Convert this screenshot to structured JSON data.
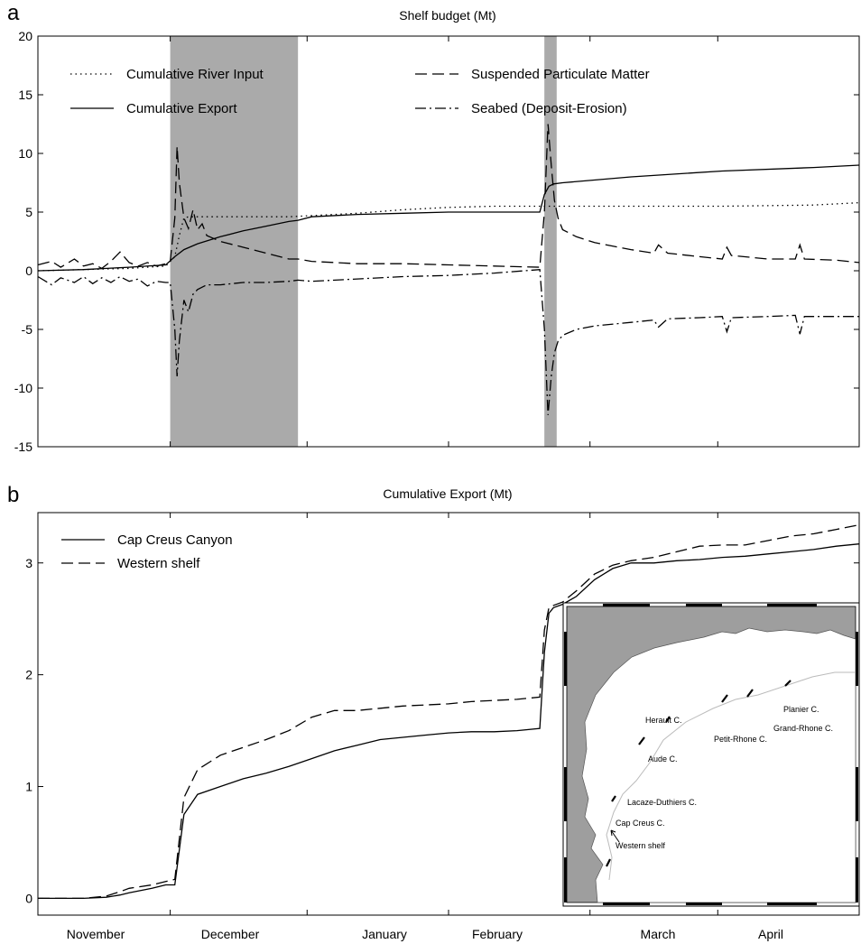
{
  "months": [
    "November",
    "December",
    "January",
    "February",
    "March",
    "April"
  ],
  "chart_data": [
    {
      "type": "line",
      "panel": "a",
      "title": "Shelf budget (Mt)",
      "xlim": [
        0,
        180
      ],
      "ylim": [
        -15,
        20
      ],
      "yticks": [
        20,
        15,
        10,
        5,
        0,
        -5,
        -10,
        -15
      ],
      "shaded_periods": [
        [
          29,
          57
        ],
        [
          111,
          113.7
        ]
      ],
      "legend": {
        "placement": "top",
        "columns": 2
      },
      "series": [
        {
          "name": "Cumulative River Input",
          "style": "dotted",
          "x": [
            0,
            10,
            20,
            28,
            30,
            31,
            32,
            33,
            37,
            45,
            55,
            60,
            70,
            80,
            90,
            100,
            110,
            111,
            112,
            113,
            115,
            130,
            150,
            170,
            180
          ],
          "y": [
            0,
            0.1,
            0.2,
            0.4,
            1.2,
            3.0,
            4.5,
            4.6,
            4.6,
            4.6,
            4.6,
            4.7,
            4.9,
            5.2,
            5.4,
            5.5,
            5.5,
            5.5,
            5.5,
            5.5,
            5.5,
            5.5,
            5.5,
            5.6,
            5.8
          ]
        },
        {
          "name": "Cumulative Export",
          "style": "solid",
          "x": [
            0,
            10,
            20,
            28,
            30,
            32,
            35,
            40,
            45,
            50,
            55,
            57,
            60,
            70,
            80,
            90,
            100,
            110,
            111,
            112,
            113,
            115,
            130,
            150,
            170,
            180
          ],
          "y": [
            0,
            0.1,
            0.3,
            0.5,
            1.2,
            1.8,
            2.3,
            2.9,
            3.4,
            3.8,
            4.2,
            4.3,
            4.6,
            4.8,
            4.9,
            5.0,
            5.0,
            5.0,
            6.5,
            7.2,
            7.4,
            7.5,
            8.0,
            8.5,
            8.8,
            9.0
          ]
        },
        {
          "name": "Suspended Particulate Matter",
          "style": "dashed",
          "x": [
            0,
            3,
            5,
            8,
            10,
            12,
            14,
            16,
            18,
            20,
            22,
            24,
            26,
            28,
            29,
            30,
            30.5,
            31,
            32,
            33,
            34,
            35,
            36,
            37,
            40,
            45,
            50,
            55,
            57,
            60,
            70,
            80,
            90,
            100,
            110,
            111,
            111.8,
            112.5,
            113.2,
            114,
            115,
            118,
            122,
            130,
            135,
            136,
            138,
            145,
            150,
            151,
            152,
            160,
            166,
            167,
            168,
            175,
            180
          ],
          "y": [
            0.5,
            0.8,
            0.3,
            1.0,
            0.4,
            0.6,
            0.2,
            0.8,
            1.6,
            0.7,
            0.4,
            0.7,
            0.4,
            0.6,
            0.8,
            4.5,
            10.6,
            7.5,
            4.5,
            3.6,
            5.2,
            3.5,
            4.0,
            3.0,
            2.5,
            2.0,
            1.5,
            1.0,
            1.0,
            0.8,
            0.6,
            0.6,
            0.5,
            0.4,
            0.3,
            5.0,
            12.5,
            9.0,
            6.0,
            4.5,
            3.5,
            2.9,
            2.4,
            1.8,
            1.5,
            2.2,
            1.5,
            1.2,
            1.0,
            2.0,
            1.3,
            1.0,
            1.0,
            2.2,
            1.0,
            0.9,
            0.7
          ]
        },
        {
          "name": "Seabed (Deposit-Erosion)",
          "style": "dashdot",
          "x": [
            0,
            3,
            5,
            8,
            10,
            12,
            14,
            16,
            18,
            20,
            22,
            24,
            26,
            28,
            29,
            30,
            30.5,
            31,
            32,
            33,
            34,
            35,
            36,
            37,
            40,
            45,
            50,
            55,
            57,
            60,
            70,
            80,
            90,
            100,
            110,
            111,
            111.8,
            112.5,
            113.2,
            114,
            115,
            118,
            122,
            130,
            135,
            136,
            138,
            145,
            150,
            151,
            152,
            160,
            166,
            167,
            168,
            175,
            180
          ],
          "y": [
            -0.5,
            -1.2,
            -0.6,
            -1.0,
            -0.5,
            -1.1,
            -0.6,
            -1.0,
            -0.5,
            -0.9,
            -0.7,
            -1.3,
            -0.9,
            -1.0,
            -1.0,
            -5.0,
            -9.0,
            -6.0,
            -2.5,
            -3.5,
            -2.0,
            -1.6,
            -1.4,
            -1.2,
            -1.2,
            -1.0,
            -1.0,
            -0.9,
            -0.8,
            -0.9,
            -0.7,
            -0.5,
            -0.4,
            -0.2,
            0.1,
            -5.0,
            -12.3,
            -9.0,
            -7.0,
            -6.0,
            -5.5,
            -5.0,
            -4.7,
            -4.4,
            -4.2,
            -4.8,
            -4.1,
            -4.0,
            -3.9,
            -5.2,
            -4.0,
            -3.9,
            -3.8,
            -5.4,
            -3.9,
            -3.9,
            -3.9
          ]
        }
      ]
    },
    {
      "type": "line",
      "panel": "b",
      "title": "Cumulative Export (Mt)",
      "xlim": [
        0,
        180
      ],
      "ylim": [
        -0.15,
        3.45
      ],
      "yticks": [
        3,
        2,
        1,
        0
      ],
      "legend": {
        "placement": "top-left",
        "columns": 1
      },
      "series": [
        {
          "name": "Cap Creus Canyon",
          "style": "solid",
          "x": [
            0,
            10,
            15,
            18,
            20,
            25,
            28,
            30,
            32,
            35,
            40,
            45,
            50,
            55,
            60,
            65,
            70,
            75,
            80,
            85,
            90,
            95,
            100,
            105,
            110,
            111,
            112,
            113,
            115,
            118,
            122,
            126,
            130,
            135,
            140,
            145,
            150,
            155,
            160,
            165,
            170,
            175,
            180
          ],
          "y": [
            0,
            0,
            0.01,
            0.03,
            0.05,
            0.09,
            0.12,
            0.12,
            0.75,
            0.93,
            1.0,
            1.07,
            1.12,
            1.18,
            1.25,
            1.32,
            1.37,
            1.42,
            1.44,
            1.46,
            1.48,
            1.49,
            1.49,
            1.5,
            1.52,
            2.2,
            2.55,
            2.6,
            2.63,
            2.7,
            2.85,
            2.95,
            3.0,
            3.0,
            3.02,
            3.03,
            3.05,
            3.06,
            3.08,
            3.1,
            3.12,
            3.15,
            3.17
          ]
        },
        {
          "name": "Western shelf",
          "style": "dashed",
          "x": [
            0,
            10,
            15,
            18,
            20,
            25,
            28,
            30,
            32,
            35,
            40,
            45,
            50,
            55,
            60,
            65,
            70,
            75,
            80,
            85,
            90,
            95,
            100,
            105,
            110,
            111,
            112,
            113,
            115,
            118,
            122,
            126,
            130,
            135,
            140,
            145,
            150,
            155,
            160,
            165,
            170,
            175,
            180
          ],
          "y": [
            0,
            0,
            0.02,
            0.06,
            0.09,
            0.12,
            0.15,
            0.17,
            0.9,
            1.15,
            1.28,
            1.35,
            1.42,
            1.5,
            1.62,
            1.68,
            1.68,
            1.7,
            1.72,
            1.73,
            1.74,
            1.76,
            1.77,
            1.78,
            1.8,
            2.4,
            2.6,
            2.62,
            2.65,
            2.75,
            2.9,
            2.98,
            3.02,
            3.05,
            3.1,
            3.15,
            3.16,
            3.16,
            3.2,
            3.24,
            3.26,
            3.3,
            3.34
          ]
        }
      ],
      "inset_map": {
        "labels": [
          "Planier C.",
          "Grand-Rhone C.",
          "Herault C.",
          "Petit-Rhone C.",
          "Aude C.",
          "Lacaze-Duthiers C.",
          "Cap Creus C.",
          "Western shelf"
        ]
      }
    }
  ]
}
